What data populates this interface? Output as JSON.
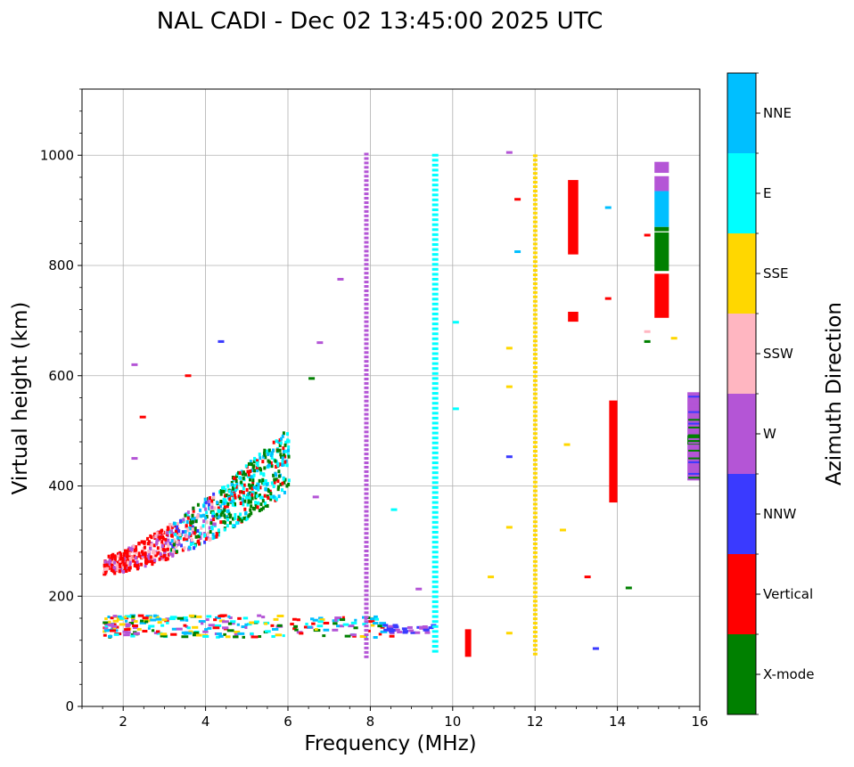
{
  "chart_data": {
    "type": "scatter",
    "title": "NAL CADI - Dec 02 13:45:00 2025 UTC",
    "xlabel": "Frequency (MHz)",
    "ylabel": "Virtual height (km)",
    "xlim": [
      1,
      16
    ],
    "ylim": [
      0,
      1120
    ],
    "xticks": [
      2,
      4,
      6,
      8,
      10,
      12,
      14,
      16
    ],
    "yticks": [
      0,
      200,
      400,
      600,
      800,
      1000
    ],
    "grid": true,
    "colorbar": {
      "label": "Azimuth Direction",
      "categories": [
        {
          "name": "X-mode",
          "color": "#008000"
        },
        {
          "name": "Vertical",
          "color": "#ff0000"
        },
        {
          "name": "NNW",
          "color": "#3a3aff"
        },
        {
          "name": "W",
          "color": "#b455d6"
        },
        {
          "name": "SSW",
          "color": "#ffb6c1"
        },
        {
          "name": "SSE",
          "color": "#ffd700"
        },
        {
          "name": "E",
          "color": "#00ffff"
        },
        {
          "name": "NNE",
          "color": "#00bfff"
        }
      ]
    },
    "echo_regions": [
      {
        "name": "F-layer trace",
        "x": [
          1.5,
          6.0
        ],
        "y": [
          230,
          540
        ],
        "directions": [
          "Vertical",
          "SSW",
          "X-mode",
          "E",
          "NNE",
          "NNW",
          "W"
        ]
      },
      {
        "name": "E-layer trace",
        "x": [
          1.5,
          8.5
        ],
        "y": [
          125,
          165
        ],
        "directions": [
          "SSE",
          "W",
          "E",
          "NNE",
          "X-mode",
          "Vertical"
        ]
      },
      {
        "name": "Sporadic E",
        "x": [
          8.3,
          9.5
        ],
        "y": [
          133,
          148
        ],
        "directions": [
          "NNW",
          "W"
        ]
      }
    ],
    "interference_lines": [
      {
        "x": 7.9,
        "y": [
          90,
          1005
        ],
        "direction": "W"
      },
      {
        "x": 9.55,
        "y": [
          100,
          1000
        ],
        "direction": "E"
      },
      {
        "x": 12.0,
        "y": [
          95,
          1005
        ],
        "direction": "SSE"
      }
    ],
    "blocks": [
      {
        "x": [
          12.8,
          13.05
        ],
        "y": [
          820,
          955
        ],
        "direction": "Vertical"
      },
      {
        "x": [
          12.8,
          13.05
        ],
        "y": [
          698,
          716
        ],
        "direction": "Vertical"
      },
      {
        "x": [
          14.9,
          15.25
        ],
        "y": [
          705,
          785
        ],
        "direction": "Vertical"
      },
      {
        "x": [
          14.9,
          15.25
        ],
        "y": [
          790,
          860
        ],
        "direction": "X-mode"
      },
      {
        "x": [
          14.9,
          15.25
        ],
        "y": [
          862,
          870
        ],
        "direction": "X-mode"
      },
      {
        "x": [
          14.9,
          15.25
        ],
        "y": [
          870,
          935
        ],
        "direction": "NNE"
      },
      {
        "x": [
          14.9,
          15.25
        ],
        "y": [
          935,
          962
        ],
        "direction": "W"
      },
      {
        "x": [
          14.9,
          15.25
        ],
        "y": [
          968,
          988
        ],
        "direction": "W"
      },
      {
        "x": [
          15.7,
          16.0
        ],
        "y": [
          410,
          570
        ],
        "direction": "W"
      },
      {
        "x": [
          15.7,
          16.0
        ],
        "y": [
          475,
          492
        ],
        "direction": "X-mode"
      },
      {
        "x": [
          13.8,
          14.0
        ],
        "y": [
          370,
          555
        ],
        "direction": "Vertical"
      },
      {
        "x": [
          10.3,
          10.45
        ],
        "y": [
          90,
          140
        ],
        "direction": "Vertical"
      }
    ],
    "scattered_echoes": [
      {
        "x": 2.2,
        "y": 620,
        "direction": "W"
      },
      {
        "x": 2.2,
        "y": 450,
        "direction": "W"
      },
      {
        "x": 2.4,
        "y": 525,
        "direction": "Vertical"
      },
      {
        "x": 3.5,
        "y": 600,
        "direction": "Vertical"
      },
      {
        "x": 4.3,
        "y": 662,
        "direction": "NNW"
      },
      {
        "x": 6.7,
        "y": 660,
        "direction": "W"
      },
      {
        "x": 7.2,
        "y": 775,
        "direction": "W"
      },
      {
        "x": 6.5,
        "y": 595,
        "direction": "X-mode"
      },
      {
        "x": 6.6,
        "y": 380,
        "direction": "W"
      },
      {
        "x": 8.5,
        "y": 357,
        "direction": "E"
      },
      {
        "x": 9.1,
        "y": 213,
        "direction": "W"
      },
      {
        "x": 10.0,
        "y": 697,
        "direction": "E"
      },
      {
        "x": 10.0,
        "y": 540,
        "direction": "E"
      },
      {
        "x": 11.5,
        "y": 920,
        "direction": "Vertical"
      },
      {
        "x": 11.5,
        "y": 825,
        "direction": "NNE"
      },
      {
        "x": 11.3,
        "y": 1005,
        "direction": "W"
      },
      {
        "x": 12.7,
        "y": 475,
        "direction": "SSE"
      },
      {
        "x": 12.6,
        "y": 320,
        "direction": "SSE"
      },
      {
        "x": 13.2,
        "y": 235,
        "direction": "Vertical"
      },
      {
        "x": 13.4,
        "y": 105,
        "direction": "NNW"
      },
      {
        "x": 13.7,
        "y": 905,
        "direction": "NNE"
      },
      {
        "x": 13.7,
        "y": 740,
        "direction": "Vertical"
      },
      {
        "x": 14.2,
        "y": 215,
        "direction": "X-mode"
      },
      {
        "x": 14.65,
        "y": 855,
        "direction": "Vertical"
      },
      {
        "x": 14.65,
        "y": 680,
        "direction": "SSW"
      },
      {
        "x": 14.65,
        "y": 662,
        "direction": "X-mode"
      },
      {
        "x": 15.3,
        "y": 668,
        "direction": "SSE"
      },
      {
        "x": 11.3,
        "y": 650,
        "direction": "SSE"
      },
      {
        "x": 11.3,
        "y": 580,
        "direction": "SSE"
      },
      {
        "x": 11.3,
        "y": 453,
        "direction": "NNW"
      },
      {
        "x": 11.3,
        "y": 325,
        "direction": "SSE"
      },
      {
        "x": 11.3,
        "y": 133,
        "direction": "SSE"
      },
      {
        "x": 10.85,
        "y": 235,
        "direction": "SSE"
      }
    ]
  }
}
